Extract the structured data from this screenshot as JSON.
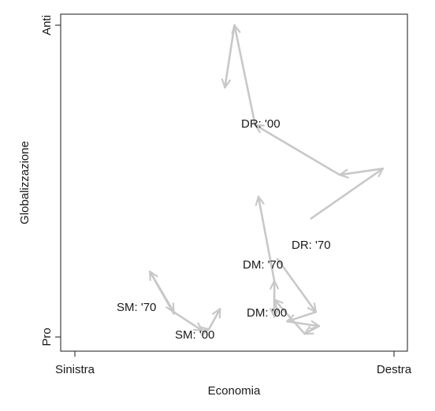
{
  "chart_data": {
    "type": "line",
    "xlabel": "Economia",
    "ylabel": "Globalizzazione",
    "x_tick_labels": [
      "Sinistra",
      "Destra"
    ],
    "y_tick_labels": [
      "Pro",
      "Anti"
    ],
    "xlim": [
      0,
      1
    ],
    "ylim": [
      0,
      1
    ],
    "grid": false,
    "line_color": "#c8c8c8",
    "series": [
      {
        "label": "DR",
        "start_label": "DR: '70",
        "end_label": "DR: '00",
        "points": [
          [
            0.74,
            0.38
          ],
          [
            0.965,
            0.54
          ],
          [
            0.83,
            0.52
          ],
          [
            0.565,
            0.68
          ],
          [
            0.5,
            1.0
          ],
          [
            0.47,
            0.8
          ]
        ]
      },
      {
        "label": "DM",
        "start_label": "DM: '70",
        "end_label": "DM: '00",
        "points": [
          [
            0.635,
            0.25
          ],
          [
            0.755,
            0.08
          ],
          [
            0.665,
            0.05
          ],
          [
            0.765,
            0.035
          ],
          [
            0.72,
            0.01
          ],
          [
            0.625,
            0.12
          ],
          [
            0.625,
            0.065
          ],
          [
            0.625,
            0.18
          ],
          [
            0.575,
            0.45
          ]
        ]
      },
      {
        "label": "SM",
        "start_label": "SM: '70",
        "end_label": "SM: '00",
        "points": [
          [
            0.31,
            0.075
          ],
          [
            0.235,
            0.21
          ],
          [
            0.31,
            0.08
          ],
          [
            0.4,
            0.02
          ],
          [
            0.42,
            0.025
          ],
          [
            0.455,
            0.09
          ]
        ]
      }
    ]
  }
}
